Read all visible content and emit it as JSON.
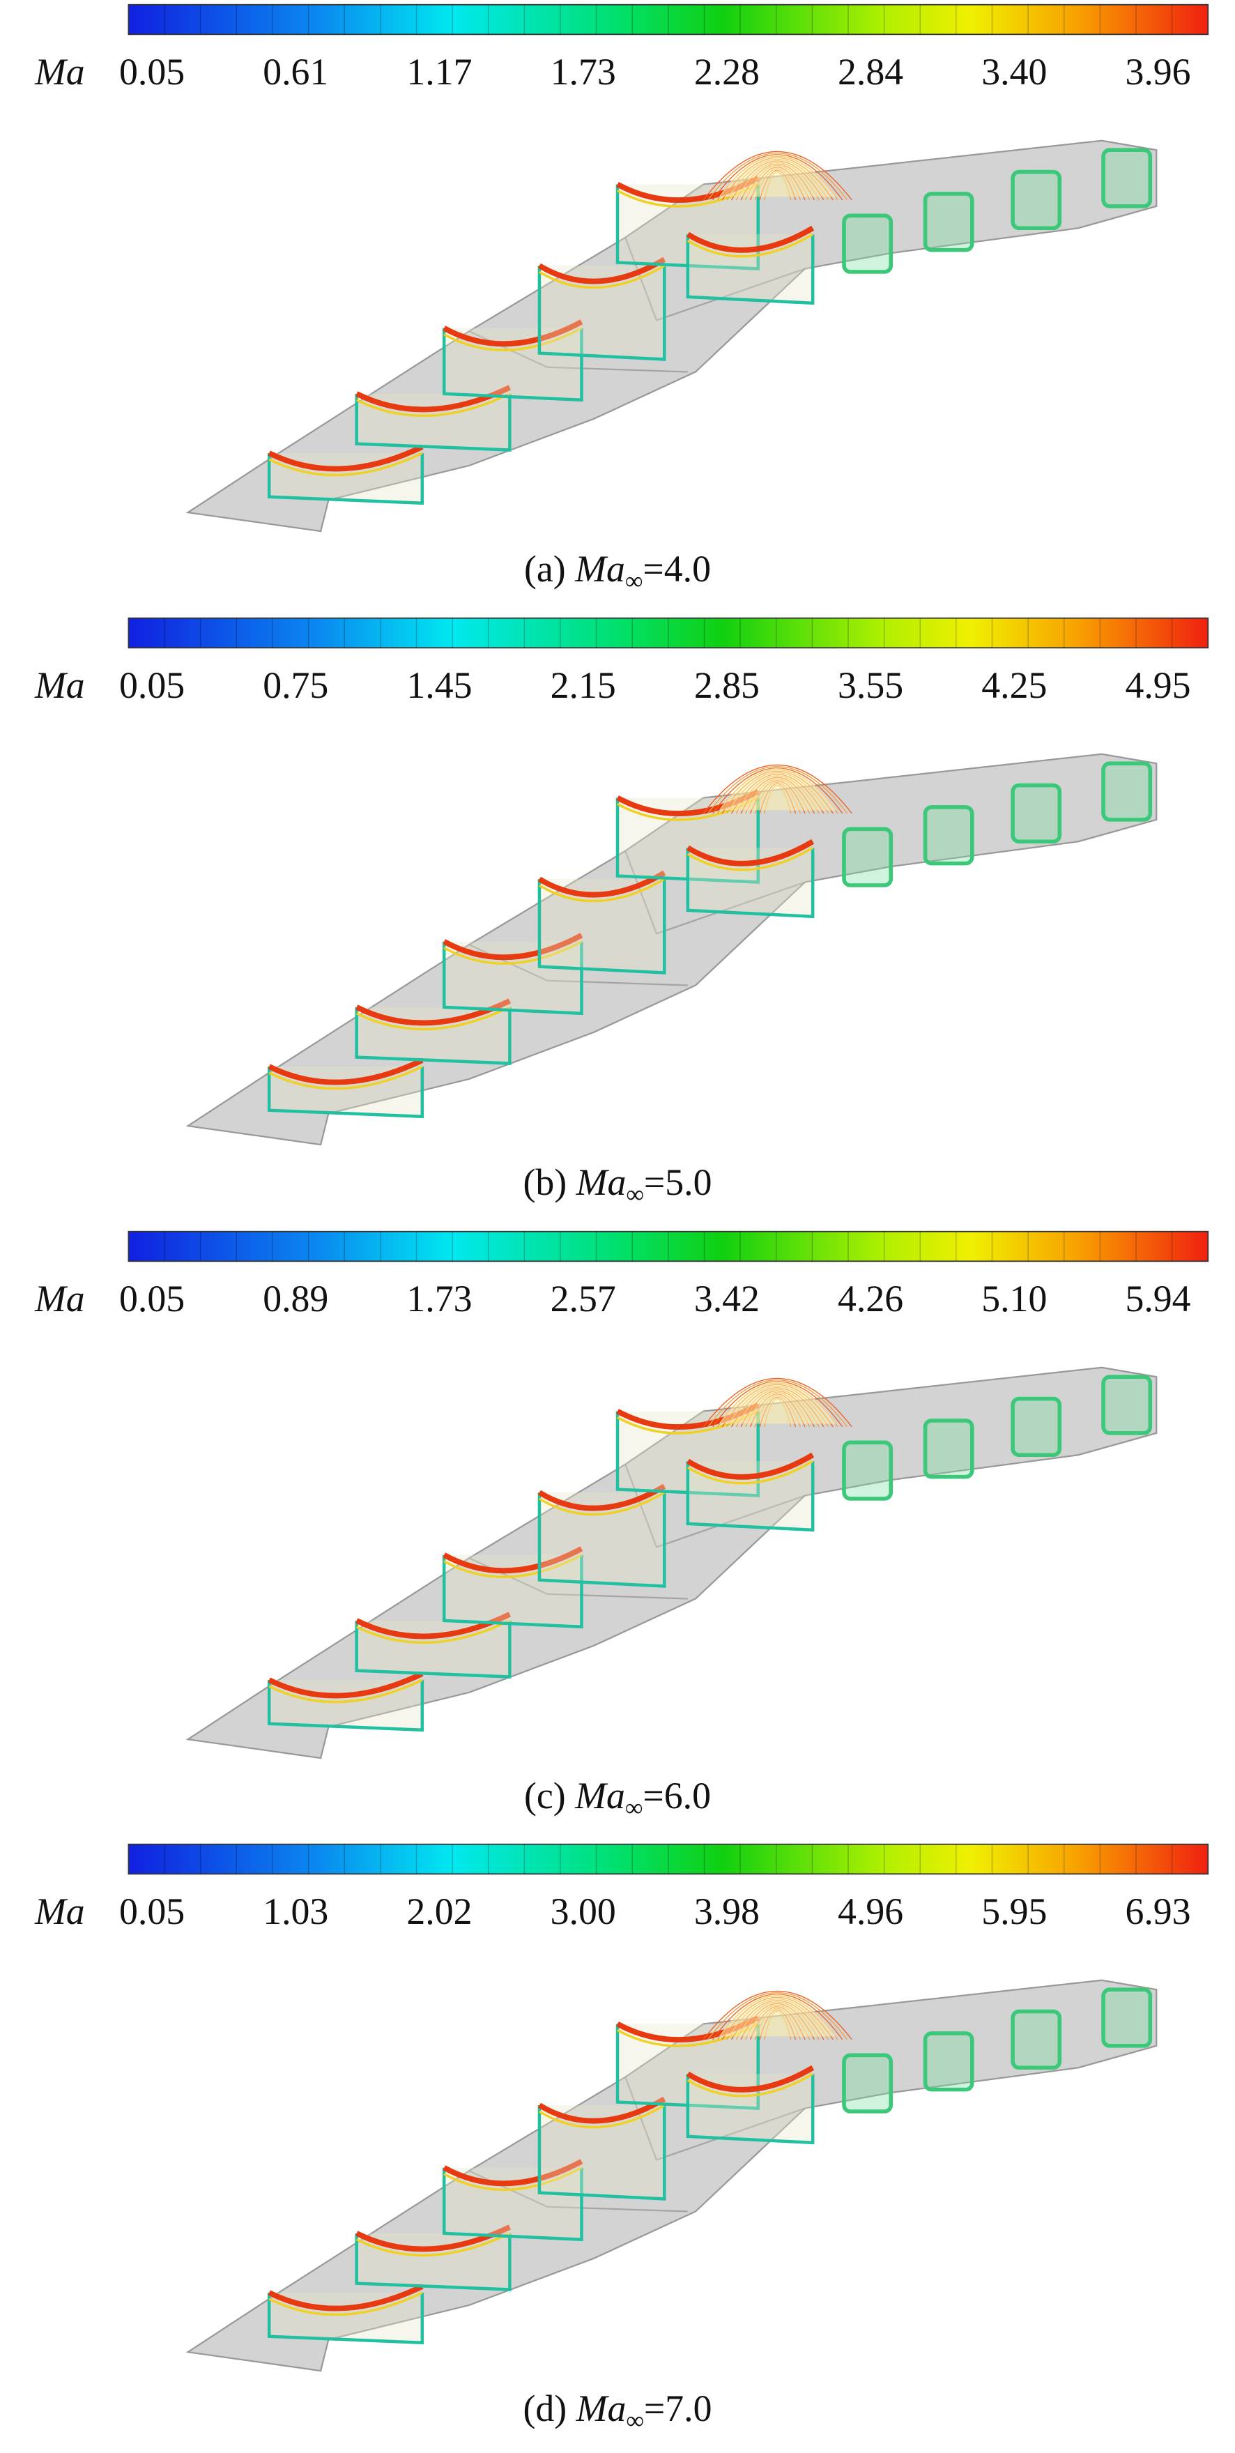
{
  "panels": [
    {
      "colorbar_label": "Ma",
      "ticks": [
        "0.05",
        "0.61",
        "1.17",
        "1.73",
        "2.28",
        "2.84",
        "3.40",
        "3.96"
      ],
      "caption": {
        "label": "(a)",
        "symbol": "Ma",
        "subscript": "∞",
        "value": "=4.0"
      }
    },
    {
      "colorbar_label": "Ma",
      "ticks": [
        "0.05",
        "0.75",
        "1.45",
        "2.15",
        "2.85",
        "3.55",
        "4.25",
        "4.95"
      ],
      "caption": {
        "label": "(b)",
        "symbol": "Ma",
        "subscript": "∞",
        "value": "=5.0"
      }
    },
    {
      "colorbar_label": "Ma",
      "ticks": [
        "0.05",
        "0.89",
        "1.73",
        "2.57",
        "3.42",
        "4.26",
        "5.10",
        "5.94"
      ],
      "caption": {
        "label": "(c)",
        "symbol": "Ma",
        "subscript": "∞",
        "value": "=6.0"
      }
    },
    {
      "colorbar_label": "Ma",
      "ticks": [
        "0.05",
        "1.03",
        "2.02",
        "3.00",
        "3.98",
        "4.96",
        "5.95",
        "6.93"
      ],
      "caption": {
        "label": "(d)",
        "symbol": "Ma",
        "subscript": "∞",
        "value": "=7.0"
      }
    }
  ]
}
